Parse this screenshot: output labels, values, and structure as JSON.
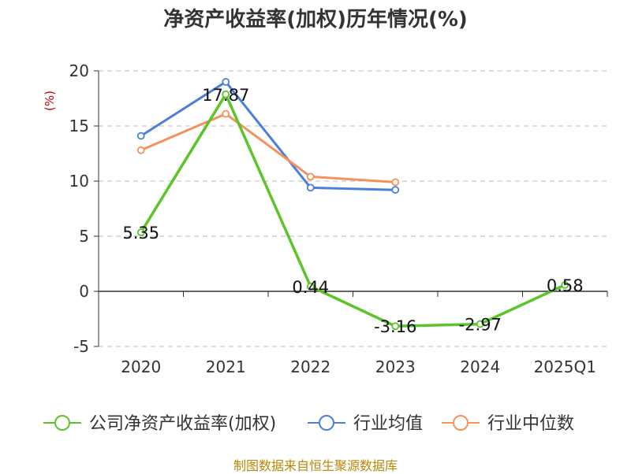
{
  "chart_data": {
    "type": "line",
    "title": "净资产收益率(加权)历年情况(%)",
    "ylabel": "(%)",
    "xlabel": "",
    "categories": [
      "2020",
      "2021",
      "2022",
      "2023",
      "2024",
      "2025Q1"
    ],
    "ylim": [
      -5,
      20
    ],
    "yticks": [
      -5,
      0,
      5,
      10,
      15,
      20
    ],
    "grid": true,
    "legend_position": "bottom",
    "series": [
      {
        "name": "公司净资产收益率(加权)",
        "color": "#5bc42a",
        "values": [
          5.35,
          17.87,
          0.44,
          -3.16,
          -2.97,
          0.58
        ],
        "labels": [
          "5.35",
          "17.87",
          "0.44",
          "-3.16",
          "-2.97",
          "0.58"
        ]
      },
      {
        "name": "行业均值",
        "color": "#4a7fdb",
        "values": [
          14.1,
          19.0,
          9.4,
          9.2,
          null,
          null
        ]
      },
      {
        "name": "行业中位数",
        "color": "#f4915c",
        "values": [
          12.8,
          16.1,
          10.4,
          9.9,
          null,
          null
        ]
      }
    ]
  },
  "footer": {
    "source": "制图数据来自恒生聚源数据库"
  }
}
